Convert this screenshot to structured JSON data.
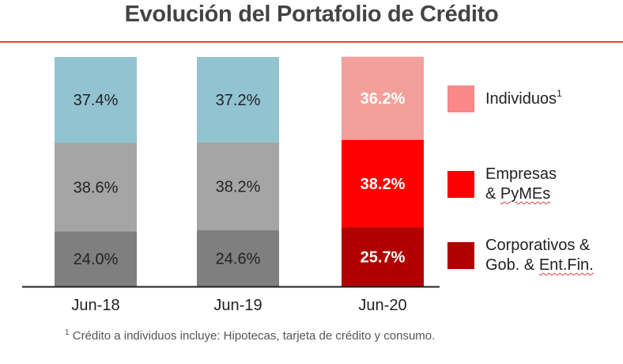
{
  "title": "Evolución del Portafolio de Crédito",
  "chart_data": {
    "type": "stacked-bar",
    "categories": [
      "Jun-18",
      "Jun-19",
      "Jun-20"
    ],
    "series": [
      {
        "name": "Corporativos & Gob. & Ent.Fin.",
        "values": [
          24.0,
          24.6,
          25.7
        ],
        "labels": [
          "24.0%",
          "24.6%",
          "25.7%"
        ]
      },
      {
        "name": "Empresas & PyMEs",
        "values": [
          38.6,
          38.2,
          38.2
        ],
        "labels": [
          "38.6%",
          "38.2%",
          "38.2%"
        ]
      },
      {
        "name": "Individuos",
        "values": [
          37.4,
          37.2,
          36.2
        ],
        "labels": [
          "37.4%",
          "37.2%",
          "36.2%"
        ]
      }
    ],
    "colors": {
      "default_bars": [
        "#7f7f7f",
        "#a5a5a5",
        "#92c3d1"
      ],
      "highlight_bar": [
        "#b00000",
        "#ff0000",
        "#f4a09a"
      ]
    },
    "highlight_category": "Jun-20",
    "ylim": [
      0,
      100
    ]
  },
  "legend": [
    {
      "lines": [
        "Individuos"
      ],
      "sup": "1",
      "color": "#f98886"
    },
    {
      "lines": [
        "Empresas",
        "& PyMEs"
      ],
      "color": "#ff0000"
    },
    {
      "lines": [
        "Corporativos &",
        "Gob. & Ent.Fin."
      ],
      "color": "#b00000"
    }
  ],
  "footnote": {
    "marker": "1",
    "text": " Crédito a individuos incluye: Hipotecas, tarjeta de crédito y consumo."
  }
}
